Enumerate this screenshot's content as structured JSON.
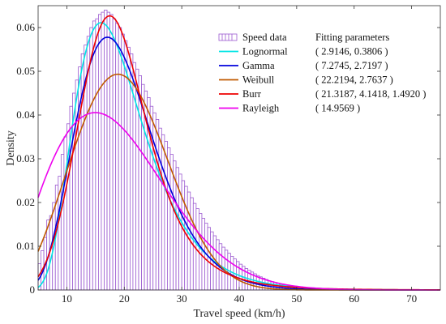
{
  "chart_data": {
    "type": "bar",
    "xlabel": "Travel speed (km/h)",
    "ylabel": "Density",
    "xlim": [
      5,
      75
    ],
    "ylim": [
      0,
      0.065
    ],
    "xticks": [
      10,
      20,
      30,
      40,
      50,
      60,
      70
    ],
    "yticks": [
      0,
      0.01,
      0.02,
      0.03,
      0.04,
      0.05,
      0.06
    ],
    "ytick_labels": [
      "0",
      "0.01",
      "0.02",
      "0.03",
      "0.04",
      "0.05",
      "0.06"
    ],
    "legend_header": "Fitting parameters",
    "legend_position": "top-right",
    "histogram": {
      "name": "Speed data",
      "color": "#9b59d0",
      "bin_width": 0.5,
      "x_start": 5,
      "values": [
        0.006,
        0.009,
        0.012,
        0.016,
        0.017,
        0.02,
        0.024,
        0.026,
        0.031,
        0.035,
        0.038,
        0.042,
        0.045,
        0.048,
        0.051,
        0.054,
        0.056,
        0.058,
        0.06,
        0.0615,
        0.062,
        0.063,
        0.0635,
        0.064,
        0.0635,
        0.063,
        0.062,
        0.061,
        0.06,
        0.0585,
        0.057,
        0.0555,
        0.054,
        0.052,
        0.0505,
        0.049,
        0.047,
        0.0455,
        0.044,
        0.042,
        0.0405,
        0.039,
        0.037,
        0.0355,
        0.034,
        0.0325,
        0.031,
        0.0295,
        0.028,
        0.0265,
        0.025,
        0.0237,
        0.0224,
        0.0211,
        0.0198,
        0.0186,
        0.0175,
        0.0164,
        0.0153,
        0.0143,
        0.0133,
        0.0124,
        0.0115,
        0.0106,
        0.0098,
        0.0091,
        0.0084,
        0.0077,
        0.0071,
        0.0065,
        0.0059,
        0.0054,
        0.0049,
        0.0045,
        0.0041,
        0.0037,
        0.0033,
        0.003,
        0.0027,
        0.0024,
        0.0021,
        0.0019,
        0.0017,
        0.0015,
        0.0013,
        0.0011,
        0.001,
        0.0009,
        0.0008,
        0.0007
      ]
    },
    "series": [
      {
        "name": "Lognormal",
        "params": "( 2.9146, 0.3806 )",
        "color": "#00e5e5",
        "dist": "lognormal",
        "p": [
          2.9146,
          0.3806
        ]
      },
      {
        "name": "Gamma",
        "params": "( 7.2745, 2.7197 )",
        "color": "#0000dd",
        "dist": "gamma",
        "p": [
          7.2745,
          2.7197
        ]
      },
      {
        "name": "Weibull",
        "params": "( 22.2194, 2.7637 )",
        "color": "#c05a00",
        "dist": "weibull",
        "p": [
          22.2194,
          2.7637
        ]
      },
      {
        "name": "Burr",
        "params": "( 21.3187, 4.1418, 1.4920 )",
        "color": "#ee0000",
        "dist": "burr",
        "p": [
          21.3187,
          4.1418,
          1.492
        ]
      },
      {
        "name": "Rayleigh",
        "params": "( 14.9569 )",
        "color": "#ee00ee",
        "dist": "rayleigh",
        "p": [
          14.9569
        ]
      }
    ]
  }
}
